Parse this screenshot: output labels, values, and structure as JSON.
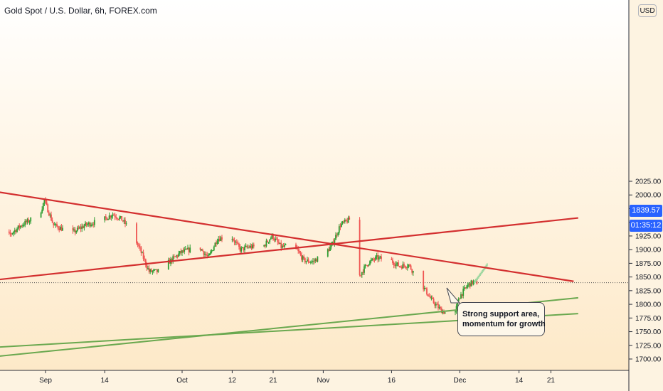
{
  "header": {
    "title": "Gold Spot / U.S. Dollar, 6h, FOREX.com",
    "currency_button": "USD"
  },
  "price_badges": {
    "last_price": "1839.57",
    "countdown": "01:35:12",
    "color": "#2962ff"
  },
  "annotation": {
    "line1": "Strong support area,",
    "line2": "momentum for growth"
  },
  "colors": {
    "up_candle": "#26a69a",
    "green_candle": "#2e9d32",
    "down_candle": "#ef5350",
    "resistance_line": "#d32f2f",
    "support_line": "#6aa84f",
    "background": "#fdf1dc"
  },
  "chart_data": {
    "type": "candlestick",
    "symbol": "Gold Spot / U.S. Dollar",
    "timeframe": "6h",
    "source": "FOREX.com",
    "currency": "USD",
    "y_ticks": [
      1700,
      1725,
      1750,
      1775,
      1800,
      1825,
      1850,
      1875,
      1900,
      1925,
      1950,
      1975,
      2000,
      2025
    ],
    "y_tick_labels": [
      "1700.00",
      "1725.00",
      "1750.00",
      "1775.00",
      "1800.00",
      "1825.00",
      "1850.00",
      "1875.00",
      "1900.00",
      "1925.00",
      "1950.00",
      "1975.00",
      "2000.00",
      "2025.00"
    ],
    "ylim": [
      1690,
      2040
    ],
    "x_ticks": [
      "Sep",
      "14",
      "Oct",
      "12",
      "21",
      "Nov",
      "16",
      "Dec",
      "14",
      "21"
    ],
    "x_tick_dates": [
      "2020-09-01",
      "2020-09-14",
      "2020-10-01",
      "2020-10-12",
      "2020-10-21",
      "2020-11-01",
      "2020-11-16",
      "2020-12-01",
      "2020-12-14",
      "2020-12-21"
    ],
    "last_price": 1839.57,
    "price_path": [
      [
        "2020-08-20",
        1935
      ],
      [
        "2020-08-24",
        1925
      ],
      [
        "2020-08-27",
        1945
      ],
      [
        "2020-08-31",
        1965
      ],
      [
        "2020-09-01",
        1990
      ],
      [
        "2020-09-03",
        1945
      ],
      [
        "2020-09-07",
        1930
      ],
      [
        "2020-09-10",
        1945
      ],
      [
        "2020-09-14",
        1955
      ],
      [
        "2020-09-16",
        1965
      ],
      [
        "2020-09-18",
        1955
      ],
      [
        "2020-09-20",
        1935
      ],
      [
        "2020-09-22",
        1900
      ],
      [
        "2020-09-24",
        1860
      ],
      [
        "2020-09-26",
        1860
      ],
      [
        "2020-09-28",
        1875
      ],
      [
        "2020-10-01",
        1895
      ],
      [
        "2020-10-05",
        1905
      ],
      [
        "2020-10-07",
        1885
      ],
      [
        "2020-10-09",
        1920
      ],
      [
        "2020-10-12",
        1925
      ],
      [
        "2020-10-14",
        1900
      ],
      [
        "2020-10-16",
        1905
      ],
      [
        "2020-10-19",
        1905
      ],
      [
        "2020-10-21",
        1925
      ],
      [
        "2020-10-23",
        1905
      ],
      [
        "2020-10-26",
        1905
      ],
      [
        "2020-10-28",
        1880
      ],
      [
        "2020-10-30",
        1878
      ],
      [
        "2020-11-01",
        1890
      ],
      [
        "2020-11-03",
        1905
      ],
      [
        "2020-11-05",
        1945
      ],
      [
        "2020-11-07",
        1955
      ],
      [
        "2020-11-09",
        1850
      ],
      [
        "2020-11-11",
        1875
      ],
      [
        "2020-11-13",
        1885
      ],
      [
        "2020-11-16",
        1880
      ],
      [
        "2020-11-18",
        1870
      ],
      [
        "2020-11-20",
        1872
      ],
      [
        "2020-11-23",
        1835
      ],
      [
        "2020-11-25",
        1808
      ],
      [
        "2020-11-27",
        1790
      ],
      [
        "2020-11-30",
        1775
      ],
      [
        "2020-12-01",
        1812
      ],
      [
        "2020-12-03",
        1835
      ],
      [
        "2020-12-04",
        1840
      ],
      [
        "2020-12-05",
        1839.57
      ]
    ],
    "projection_path": [
      [
        "2020-12-04",
        1840
      ],
      [
        "2020-12-07",
        1875
      ]
    ],
    "trendlines": [
      {
        "role": "resistance",
        "color": "#d32f2f",
        "from": [
          "2020-08-18",
          2010
        ],
        "to": [
          "2020-12-26",
          1842
        ]
      },
      {
        "role": "rising",
        "color": "#d32f2f",
        "from": [
          "2020-08-18",
          1842
        ],
        "to": [
          "2020-12-27",
          1958
        ]
      },
      {
        "role": "support",
        "color": "#6aa84f",
        "from": [
          "2020-08-18",
          1702
        ],
        "to": [
          "2020-12-27",
          1812
        ]
      },
      {
        "role": "support",
        "color": "#6aa84f",
        "from": [
          "2020-08-18",
          1720
        ],
        "to": [
          "2020-12-27",
          1783
        ]
      }
    ],
    "horizontal_level": 1839.57,
    "grid": false
  }
}
